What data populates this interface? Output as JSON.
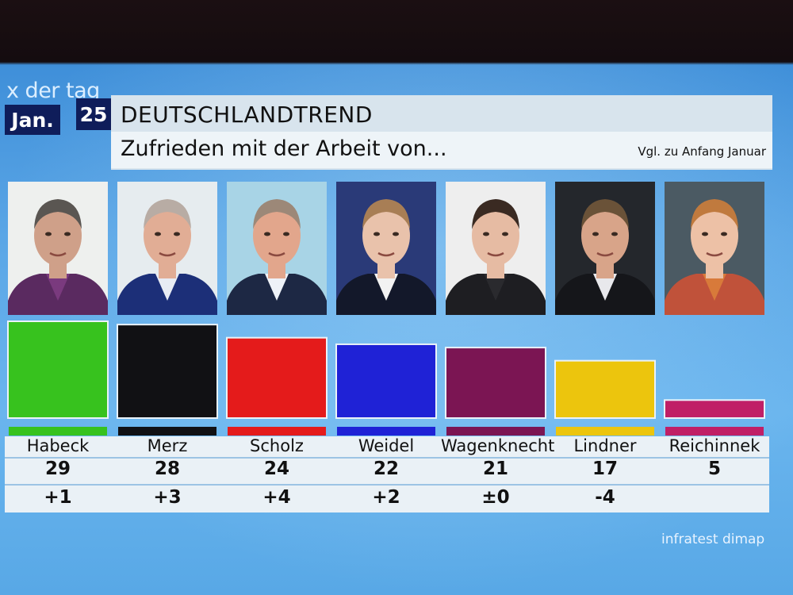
{
  "broadcast": {
    "logo_text": "x der tag",
    "date_month": "Jan.",
    "date_day": "25"
  },
  "header": {
    "title": "DEUTSCHLANDTREND",
    "subtitle": "Zufrieden mit der Arbeit von...",
    "comparison_note": "Vgl. zu Anfang Januar"
  },
  "source": "infratest dimap",
  "chart_data": {
    "type": "bar",
    "title": "Zufrieden mit der Arbeit von...",
    "categories": [
      "Habeck",
      "Merz",
      "Scholz",
      "Weidel",
      "Wagenknecht",
      "Lindner",
      "Reichinnek"
    ],
    "values": [
      29,
      28,
      24,
      22,
      21,
      17,
      5
    ],
    "changes": [
      "+1",
      "+3",
      "+4",
      "+2",
      "±0",
      "-4",
      ""
    ],
    "colors": [
      "#37c21e",
      "#111114",
      "#e41b1b",
      "#1f22d6",
      "#7b1553",
      "#ecc50d",
      "#c01f66"
    ],
    "ylim": [
      0,
      29
    ],
    "grid": false,
    "legend": "none"
  },
  "people": [
    {
      "name": "Habeck",
      "photo_bg": "#eef0ee",
      "skin": "#cfa089",
      "hair": "#5a5652",
      "suit": "#5a2a60",
      "shirt": "#7a3a7e"
    },
    {
      "name": "Merz",
      "photo_bg": "#e6ecef",
      "skin": "#e1ad95",
      "hair": "#b8aca4",
      "suit": "#1c2f78",
      "shirt": "#e8ecf4"
    },
    {
      "name": "Scholz",
      "photo_bg": "#a8d4e6",
      "skin": "#e2a68c",
      "hair": "#9c8878",
      "suit": "#1d2844",
      "shirt": "#eef2f8"
    },
    {
      "name": "Weidel",
      "photo_bg": "#2a3a78",
      "skin": "#e9c2ab",
      "hair": "#a87e55",
      "suit": "#13182a",
      "shirt": "#f2f2f2"
    },
    {
      "name": "Wagenknecht",
      "photo_bg": "#eeeeee",
      "skin": "#e6bba3",
      "hair": "#3a2a22",
      "suit": "#1e1e22",
      "shirt": "#2a2a2e"
    },
    {
      "name": "Lindner",
      "photo_bg": "#24272c",
      "skin": "#d8a489",
      "hair": "#6a5238",
      "suit": "#15161a",
      "shirt": "#e8e8ec"
    },
    {
      "name": "Reichinnek",
      "photo_bg": "#4b5a63",
      "skin": "#edc1a6",
      "hair": "#c07a3e",
      "suit": "#c0523a",
      "shirt": "#d87a3a"
    }
  ]
}
